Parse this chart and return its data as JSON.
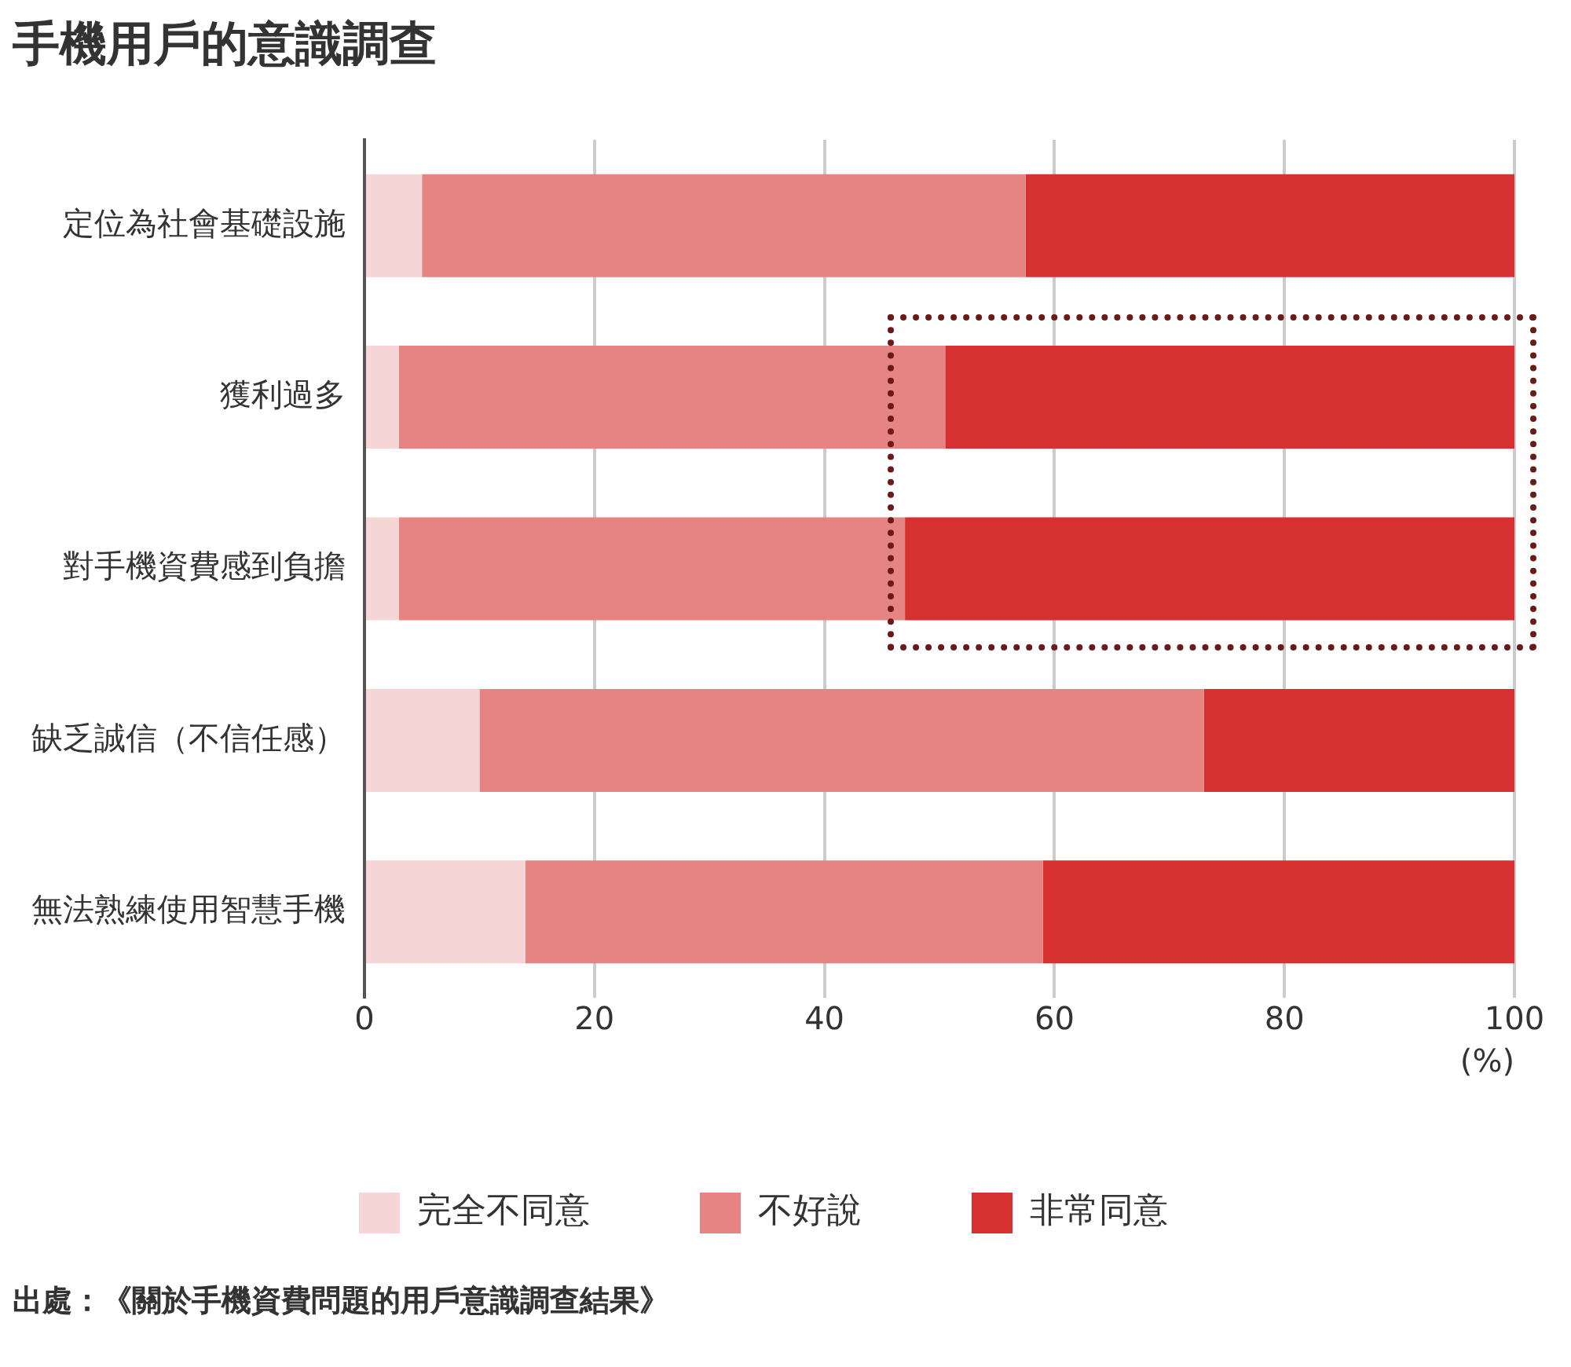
{
  "chart_data": {
    "type": "bar",
    "orientation": "horizontal",
    "stacked": true,
    "title": "手機用戶的意識調查",
    "xlabel": "(%)",
    "categories": [
      "定位為社會基礎設施",
      "獲利過多",
      "對手機資費感到負擔",
      "缺乏誠信（不信任感）",
      "無法熟練使用智慧手機"
    ],
    "series": [
      {
        "name": "完全不同意",
        "color": "#f5d5d5",
        "values": [
          5,
          3,
          3,
          10,
          14
        ]
      },
      {
        "name": "不好說",
        "color": "#e68383",
        "values": [
          52.5,
          47.5,
          44,
          63,
          45
        ]
      },
      {
        "name": "非常同意",
        "color": "#d63031",
        "values": [
          42.5,
          49.5,
          53,
          27,
          41
        ]
      }
    ],
    "xlim": [
      0,
      100
    ],
    "xticks": [
      0,
      20,
      40,
      60,
      80,
      100
    ],
    "grid": "x",
    "legend": "bottom",
    "annotations": [
      "出處：《關於手機資費問題的用戶意識調查結果》"
    ]
  }
}
